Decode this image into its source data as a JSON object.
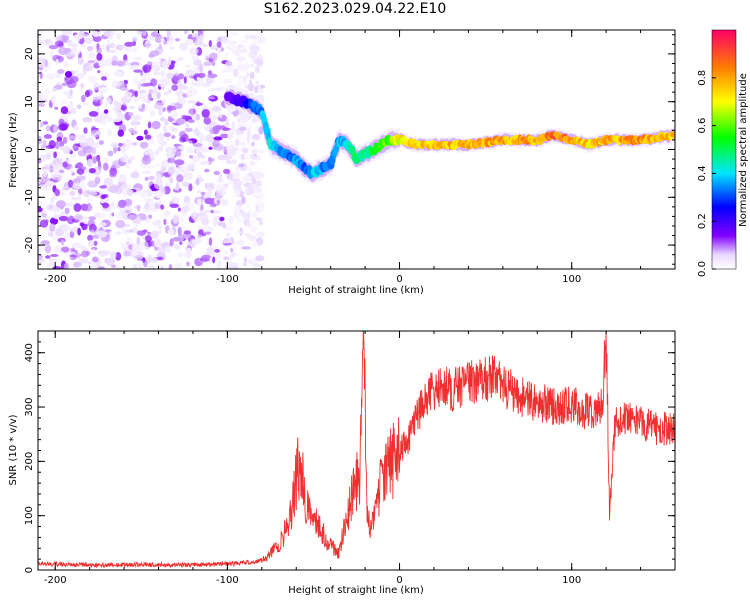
{
  "figure": {
    "title": "S162.2023.029.04.22.E10"
  },
  "chart_data": [
    {
      "type": "heatmap",
      "name": "spectrogram",
      "xlabel": "Height of straight line (km)",
      "ylabel": "Frequency (Hz)",
      "xlim": [
        -210,
        160
      ],
      "ylim": [
        -25,
        25
      ],
      "xticks": [
        -200,
        -100,
        0,
        100
      ],
      "yticks": [
        -20,
        -10,
        0,
        10,
        20
      ],
      "grid": false,
      "colormap": [
        "#ffffff",
        "#e8d8ff",
        "#8000ff",
        "#0000ff",
        "#00e5ff",
        "#00ff00",
        "#ffff00",
        "#ff8000",
        "#ff0066"
      ],
      "colorbar": {
        "label": "Normalized spectral amplitude",
        "range": [
          0,
          1
        ],
        "ticks": [
          0.0,
          0.2,
          0.4,
          0.6,
          0.8
        ],
        "tick_labels": [
          "0.0",
          "0.2",
          "0.4",
          "0.6",
          "0.8"
        ]
      },
      "ridge": {
        "x": [
          -100,
          -90,
          -85,
          -80,
          -75,
          -70,
          -65,
          -60,
          -55,
          -50,
          -45,
          -40,
          -35,
          -30,
          -25,
          -20,
          -15,
          -10,
          -5,
          0,
          10,
          20,
          40,
          60,
          80,
          90,
          100,
          110,
          120,
          140,
          160
        ],
        "frequency": [
          11,
          10,
          9,
          8,
          1,
          0,
          -1,
          -2,
          -4,
          -5,
          -4,
          -3,
          2,
          1,
          -2,
          -1,
          0,
          1,
          2,
          2,
          1,
          1,
          1,
          2,
          2,
          3,
          2,
          1,
          2,
          2,
          3
        ],
        "amplitude": [
          0.3,
          0.35,
          0.45,
          0.5,
          0.55,
          0.5,
          0.45,
          0.5,
          0.45,
          0.55,
          0.5,
          0.45,
          0.5,
          0.55,
          0.6,
          0.6,
          0.65,
          0.7,
          0.75,
          0.8,
          0.85,
          0.85,
          0.9,
          0.9,
          0.9,
          0.95,
          0.9,
          0.85,
          0.9,
          0.9,
          0.85
        ]
      },
      "noise_region": {
        "x_range": [
          -210,
          -80
        ],
        "frequency_range": [
          -25,
          25
        ],
        "amplitude_range": [
          0.05,
          0.25
        ]
      }
    },
    {
      "type": "line",
      "name": "snr",
      "xlabel": "Height of straight line (km)",
      "ylabel": "SNR (10 * v/v)",
      "xlim": [
        -210,
        160
      ],
      "ylim": [
        0,
        440
      ],
      "xticks": [
        -200,
        -100,
        0,
        100
      ],
      "yticks": [
        0,
        100,
        200,
        300,
        400
      ],
      "grid": false,
      "color": "#ee3030",
      "series": [
        {
          "x": [
            -210,
            -190,
            -170,
            -150,
            -130,
            -110,
            -95,
            -85,
            -78,
            -72,
            -68,
            -64,
            -61,
            -58,
            -55,
            -52,
            -48,
            -45,
            -42,
            -38,
            -35,
            -32,
            -29,
            -26,
            -23,
            -21,
            -19,
            -16,
            -12,
            -8,
            -4,
            0,
            5,
            10,
            15,
            20,
            25,
            30,
            40,
            50,
            55,
            60,
            70,
            80,
            90,
            100,
            110,
            115,
            118,
            120,
            122,
            125,
            130,
            140,
            150,
            160
          ],
          "values": [
            12,
            10,
            9,
            10,
            9,
            10,
            12,
            15,
            20,
            40,
            60,
            90,
            150,
            200,
            140,
            100,
            90,
            70,
            50,
            40,
            30,
            80,
            120,
            150,
            180,
            440,
            100,
            80,
            150,
            180,
            200,
            220,
            240,
            280,
            320,
            330,
            340,
            330,
            345,
            350,
            355,
            340,
            320,
            310,
            300,
            305,
            290,
            295,
            300,
            440,
            100,
            270,
            280,
            270,
            260,
            260
          ]
        }
      ]
    }
  ]
}
